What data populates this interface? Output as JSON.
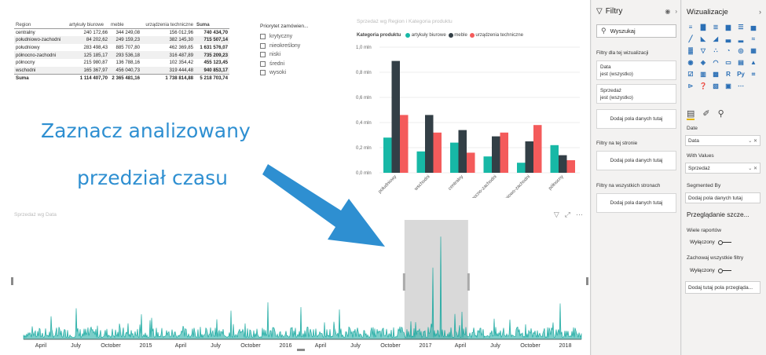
{
  "matrix": {
    "headers": [
      "Region",
      "artykuły biurowe",
      "meble",
      "urządzenia techniczne",
      "Suma"
    ],
    "rows": [
      {
        "region": "centralny",
        "office": "240 172,66",
        "furniture": "344 249,08",
        "tech": "156 012,96",
        "sum": "740 434,70"
      },
      {
        "region": "południowo-zachodni",
        "office": "84 202,62",
        "furniture": "249 159,23",
        "tech": "382 145,30",
        "sum": "715 507,14"
      },
      {
        "region": "południowy",
        "office": "283 498,43",
        "furniture": "885 707,80",
        "tech": "462 369,85",
        "sum": "1 631 576,07"
      },
      {
        "region": "północno-zachodni",
        "office": "125 185,17",
        "furniture": "293 536,18",
        "tech": "316 487,89",
        "sum": "735 209,23"
      },
      {
        "region": "północny",
        "office": "215 980,87",
        "furniture": "136 788,16",
        "tech": "102 354,42",
        "sum": "455 123,45"
      },
      {
        "region": "wschodni",
        "office": "165 367,97",
        "furniture": "456 040,73",
        "tech": "319 444,48",
        "sum": "940 853,17"
      }
    ],
    "total": {
      "region": "Suma",
      "office": "1 114 407,70",
      "furniture": "2 365 481,16",
      "tech": "1 738 814,88",
      "sum": "5 218 703,74"
    }
  },
  "slicer": {
    "title": "Priorytet zamówien...",
    "options": [
      "krytyczny",
      "nieokreślony",
      "niski",
      "średni",
      "wysoki"
    ]
  },
  "callout": {
    "line1": "Zaznacz analizowany",
    "line2": "przedział czasu"
  },
  "colors": {
    "office": "#17b8a6",
    "furniture": "#333f46",
    "tech": "#f45b5b",
    "callout": "#2e8fd1",
    "line": "#0fa59c",
    "selection": "#d9d9d9"
  },
  "chart_data": [
    {
      "type": "bar",
      "title": "Sprzedaż wg Region i Kategoria produktu",
      "legend_title": "Kategoria produktu",
      "legend_position": "top-left",
      "categories": [
        "południowy",
        "wschodni",
        "centralny",
        "północno-zachodni",
        "południowo-zachodni",
        "północny"
      ],
      "series": [
        {
          "name": "artykuły biurowe",
          "values": [
            0.28,
            0.17,
            0.24,
            0.13,
            0.08,
            0.22
          ]
        },
        {
          "name": "meble",
          "values": [
            0.89,
            0.46,
            0.34,
            0.29,
            0.25,
            0.14
          ]
        },
        {
          "name": "urządzenia techniczne",
          "values": [
            0.46,
            0.32,
            0.16,
            0.32,
            0.38,
            0.1
          ]
        }
      ],
      "y_ticks": [
        "0,0 mln",
        "0,2 mln",
        "0,4 mln",
        "0,6 mln",
        "0,8 mln",
        "1,0 mln"
      ],
      "ylim": [
        0,
        1.0
      ],
      "grid": true
    },
    {
      "type": "line",
      "title": "Sprzedaż wg Data",
      "x_ticks": [
        "April",
        "July",
        "October",
        "2015",
        "April",
        "July",
        "October",
        "2016",
        "April",
        "July",
        "October",
        "2017",
        "April",
        "July",
        "October",
        "2018"
      ],
      "selection_range": [
        "October 2016",
        "April 2017"
      ],
      "spikes": [
        {
          "x": "2017-01-10",
          "y": 0.86
        },
        {
          "x": "2016-12-20",
          "y": 0.6
        },
        {
          "x": "2017-03-05",
          "y": 0.23
        },
        {
          "x": "2015-10-15",
          "y": 0.31
        },
        {
          "x": "2016-01-10",
          "y": 0.27
        },
        {
          "x": "2016-04-20",
          "y": 0.25
        },
        {
          "x": "2014-06-01",
          "y": 0.26
        },
        {
          "x": "2017-11-18",
          "y": 0.3
        },
        {
          "x": "2014-11-20",
          "y": 0.21
        },
        {
          "x": "2015-07-10",
          "y": 0.24
        }
      ]
    }
  ],
  "filters": {
    "title": "Filtry",
    "search_placeholder": "Wyszukaj",
    "visual_section": "Filtry dla tej wizualizacji",
    "more": "...",
    "card1_title": "Data",
    "card1_value": "jest (wszystko)",
    "card2_title": "Sprzedaż",
    "card2_value": "jest (wszystko)",
    "add_field": "Dodaj pola danych tutaj",
    "page_section": "Filtry na tej stronie",
    "all_section": "Filtry na wszystkich stronach"
  },
  "visualizations": {
    "title": "Wizualizacje",
    "icons": [
      "stacked-bar-icon",
      "stacked-column-icon",
      "clustered-bar-icon",
      "clustered-column-icon",
      "100-bar-icon",
      "100-column-icon",
      "line-chart-icon",
      "area-chart-icon",
      "stacked-area-icon",
      "line-column-icon",
      "line-clustered-icon",
      "ribbon-icon",
      "waterfall-icon",
      "funnel-icon",
      "scatter-icon",
      "pie-icon",
      "donut-icon",
      "treemap-icon",
      "map-icon",
      "filled-map-icon",
      "gauge-icon",
      "card-icon",
      "multirow-card-icon",
      "kpi-icon",
      "slicer-icon",
      "table-icon",
      "matrix-icon",
      "r-visual-icon",
      "python-visual-icon",
      "key-influencers-icon",
      "decomposition-icon",
      "qa-icon",
      "smart-narrative-icon",
      "paginated-icon",
      "more-visuals-icon"
    ],
    "r_label": "R",
    "py_label": "Py",
    "fields": {
      "axis_label": "Date",
      "axis_value": "Data",
      "values_label": "With Values",
      "values_value": "Sprzedaż",
      "segmented_label": "Segmented By",
      "segmented_value": "Dodaj pola danych tutaj"
    },
    "drillthrough_title": "Przeglądanie szcze...",
    "cross_report_label": "Wiele raportów",
    "cross_report_state": "Wyłączony",
    "keep_filters_label": "Zachowaj wszystkie filtry",
    "keep_filters_state": "Wyłączony",
    "drillthrough_drop": "Dodaj tutaj pola przegląda..."
  }
}
